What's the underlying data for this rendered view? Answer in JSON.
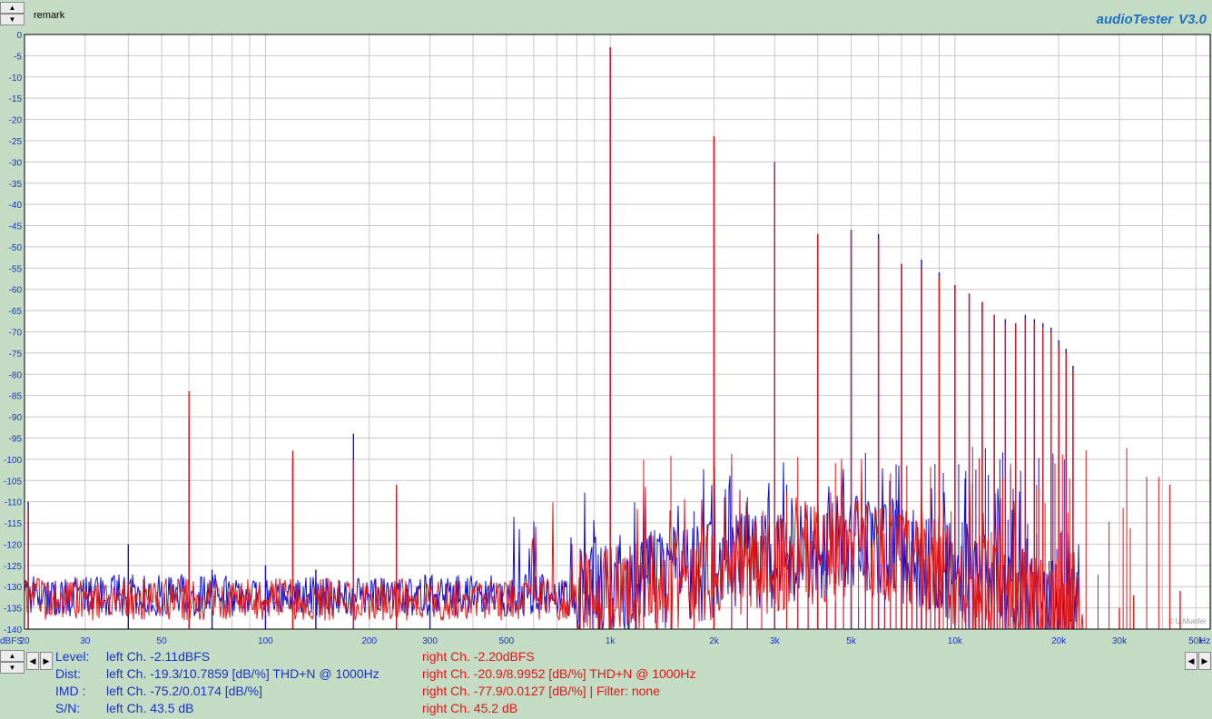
{
  "header": {
    "remark": "remark",
    "app_title": "audioTester",
    "version": "V3.0"
  },
  "chart_data": {
    "type": "line",
    "xscale": "log",
    "xlim": [
      20,
      55000
    ],
    "ylim": [
      -140,
      0
    ],
    "grid": true,
    "x_tick_labels": [
      {
        "v": 20,
        "t": "20"
      },
      {
        "v": 30,
        "t": "30"
      },
      {
        "v": 50,
        "t": "50"
      },
      {
        "v": 100,
        "t": "100"
      },
      {
        "v": 200,
        "t": "200"
      },
      {
        "v": 300,
        "t": "300"
      },
      {
        "v": 500,
        "t": "500"
      },
      {
        "v": 1000,
        "t": "1k"
      },
      {
        "v": 2000,
        "t": "2k"
      },
      {
        "v": 3000,
        "t": "3k"
      },
      {
        "v": 5000,
        "t": "5k"
      },
      {
        "v": 10000,
        "t": "10k"
      },
      {
        "v": 20000,
        "t": "20k"
      },
      {
        "v": 30000,
        "t": "30k"
      },
      {
        "v": 50000,
        "t": "50k"
      }
    ],
    "x_unit": "Hz",
    "y_unit": "dBFS",
    "y_ticks": [
      0,
      -5,
      -10,
      -15,
      -20,
      -25,
      -30,
      -35,
      -40,
      -45,
      -50,
      -55,
      -60,
      -65,
      -70,
      -75,
      -80,
      -85,
      -90,
      -95,
      -100,
      -105,
      -110,
      -115,
      -120,
      -125,
      -130,
      -135,
      -140
    ],
    "watermark": "© U.Mueller",
    "series": [
      {
        "name": "left Ch.",
        "color": "#1010d0",
        "peaks": [
          {
            "f": 20.5,
            "db": -110
          },
          {
            "f": 40,
            "db": -120
          },
          {
            "f": 60,
            "db": -90
          },
          {
            "f": 70,
            "db": -126
          },
          {
            "f": 100,
            "db": -125
          },
          {
            "f": 120,
            "db": -100
          },
          {
            "f": 140,
            "db": -126
          },
          {
            "f": 180,
            "db": -94
          },
          {
            "f": 240,
            "db": -108
          },
          {
            "f": 300,
            "db": -128
          },
          {
            "f": 1000,
            "db": -3
          },
          {
            "f": 2000,
            "db": -24
          },
          {
            "f": 3000,
            "db": -30
          },
          {
            "f": 4000,
            "db": -47
          },
          {
            "f": 5000,
            "db": -46
          },
          {
            "f": 6000,
            "db": -47
          },
          {
            "f": 7000,
            "db": -54
          },
          {
            "f": 8000,
            "db": -53
          },
          {
            "f": 9000,
            "db": -56
          },
          {
            "f": 10000,
            "db": -59
          },
          {
            "f": 11000,
            "db": -61
          },
          {
            "f": 12000,
            "db": -63
          },
          {
            "f": 13000,
            "db": -66
          },
          {
            "f": 14000,
            "db": -67
          },
          {
            "f": 15000,
            "db": -68
          },
          {
            "f": 16000,
            "db": -66
          },
          {
            "f": 17000,
            "db": -67
          },
          {
            "f": 18000,
            "db": -68
          },
          {
            "f": 19000,
            "db": -69
          },
          {
            "f": 20000,
            "db": -72
          },
          {
            "f": 21000,
            "db": -74
          },
          {
            "f": 22000,
            "db": -78
          }
        ],
        "floor_db": -132
      },
      {
        "name": "right Ch.",
        "color": "#e01818",
        "peaks": [
          {
            "f": 20.5,
            "db": -112
          },
          {
            "f": 60,
            "db": -84
          },
          {
            "f": 120,
            "db": -98
          },
          {
            "f": 180,
            "db": -100
          },
          {
            "f": 240,
            "db": -106
          },
          {
            "f": 1000,
            "db": -3
          },
          {
            "f": 2000,
            "db": -24
          },
          {
            "f": 3000,
            "db": -30
          },
          {
            "f": 4000,
            "db": -47
          },
          {
            "f": 5000,
            "db": -46
          },
          {
            "f": 6000,
            "db": -48
          },
          {
            "f": 7000,
            "db": -54
          },
          {
            "f": 8000,
            "db": -55
          },
          {
            "f": 9000,
            "db": -57
          },
          {
            "f": 10000,
            "db": -59
          },
          {
            "f": 11000,
            "db": -61
          },
          {
            "f": 12000,
            "db": -63
          },
          {
            "f": 13000,
            "db": -66
          },
          {
            "f": 14000,
            "db": -68
          },
          {
            "f": 15000,
            "db": -68
          },
          {
            "f": 16000,
            "db": -67
          },
          {
            "f": 17000,
            "db": -68
          },
          {
            "f": 18000,
            "db": -69
          },
          {
            "f": 19000,
            "db": -70
          },
          {
            "f": 20000,
            "db": -73
          },
          {
            "f": 21000,
            "db": -75
          },
          {
            "f": 22000,
            "db": -79
          },
          {
            "f": 30000,
            "db": -135
          },
          {
            "f": 33000,
            "db": -132
          },
          {
            "f": 45000,
            "db": -131
          }
        ],
        "floor_db": -133
      }
    ]
  },
  "readout": {
    "rows": [
      {
        "label": "Level:",
        "left": "left Ch. -2.11dBFS",
        "right": "right Ch. -2.20dBFS"
      },
      {
        "label": "Dist:",
        "left": "left Ch. -19.3/10.7859 [dB/%] THD+N  @ 1000Hz",
        "right": "right Ch. -20.9/8.9952 [dB/%] THD+N  @ 1000Hz"
      },
      {
        "label": "IMD  :",
        "left": "left Ch. -75.2/0.0174 [dB/%]",
        "right": "right Ch. -77.9/0.0127 [dB/%] |   Filter: none"
      },
      {
        "label": "S/N:",
        "left": "left Ch. 43.5 dB",
        "right": "right Ch. 45.2 dB"
      }
    ]
  }
}
